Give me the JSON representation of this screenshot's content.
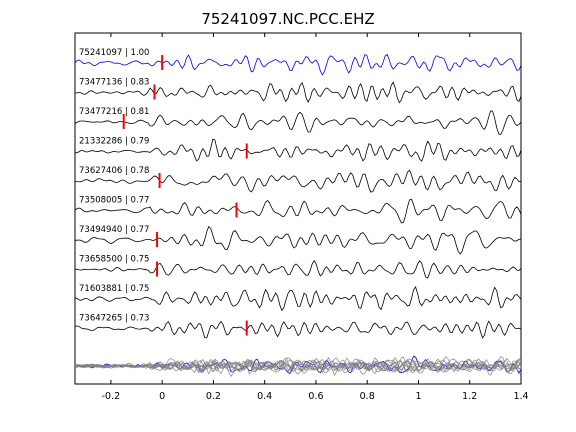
{
  "chart_data": {
    "type": "line",
    "title": "75241097.NC.PCC.EHZ",
    "xlabel": "",
    "ylabel": "",
    "xlim": [
      -0.34,
      1.4
    ],
    "xticks": [
      -0.2,
      0,
      0.2,
      0.4,
      0.6,
      0.8,
      1.0,
      1.2,
      1.4
    ],
    "xtick_labels": [
      "-0.2",
      "0",
      "0.2",
      "0.4",
      "0.6",
      "0.8",
      "1",
      "1.2",
      "1.4"
    ],
    "grid": false,
    "colors": {
      "reference": "#0000ff",
      "trace": "#000000",
      "pick": "#ff0000",
      "stack": "#808080"
    },
    "series": [
      {
        "name": "75241097 | 1.00",
        "pick_time": 0.0,
        "reference": true
      },
      {
        "name": "73477136 | 0.83",
        "pick_time": -0.03
      },
      {
        "name": "73477216 | 0.81",
        "pick_time": -0.15
      },
      {
        "name": "21332286 | 0.79",
        "pick_time": 0.33
      },
      {
        "name": "73627406 | 0.78",
        "pick_time": -0.01
      },
      {
        "name": "73508005 | 0.77",
        "pick_time": 0.29
      },
      {
        "name": "73494940 | 0.77",
        "pick_time": -0.02
      },
      {
        "name": "73658500 | 0.75",
        "pick_time": -0.02
      },
      {
        "name": "71603881 | 0.75",
        "pick_time": null
      },
      {
        "name": "73647265 | 0.73",
        "pick_time": 0.33
      }
    ]
  }
}
